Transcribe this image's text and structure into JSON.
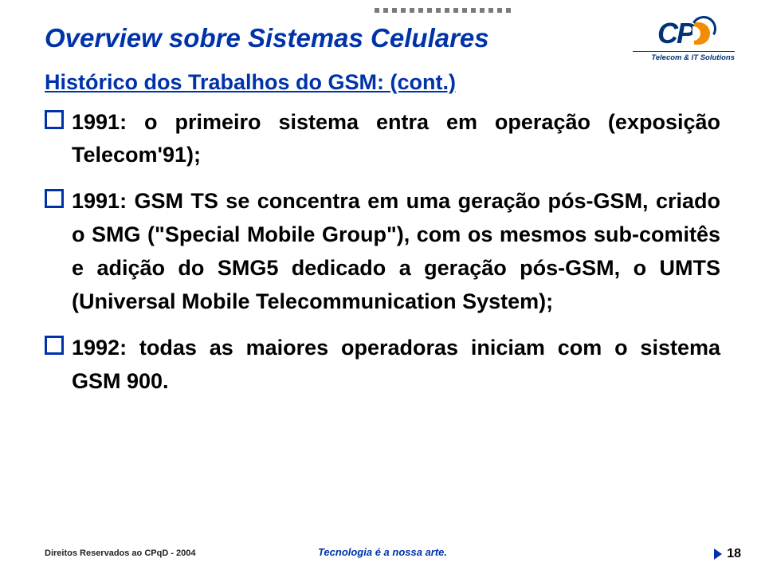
{
  "colors": {
    "title": "#0033aa",
    "subtitle": "#0033aa",
    "body_text": "#000000",
    "bullet_border": "#0033aa",
    "dots": "#7a7a7a",
    "logo_primary": "#003377",
    "logo_accent": "#f28c00",
    "footer_center": "#0033aa",
    "background": "#ffffff"
  },
  "typography": {
    "title_fontsize": 33,
    "subtitle_fontsize": 27,
    "body_fontsize": 27,
    "footer_fontsize": 11,
    "pagenum_fontsize": 16,
    "font_family": "Arial"
  },
  "dots_count": 16,
  "title": "Overview sobre Sistemas Celulares",
  "subtitle": "Histórico dos Trabalhos do GSM: (cont.)",
  "logo": {
    "letters": "CP",
    "tagline": "Telecom & IT Solutions"
  },
  "bullets": [
    "1991: o primeiro sistema entra em operação (exposição Telecom'91);",
    "1991: GSM TS se concentra em uma geração pós-GSM, criado o SMG (\"Special Mobile Group\"), com os mesmos sub-comitês e adição do SMG5 dedicado a geração pós-GSM, o UMTS (Universal Mobile Telecommunication System);",
    "1992: todas as maiores operadoras iniciam com o sistema GSM 900."
  ],
  "footer": {
    "left": "Direitos Reservados ao CPqD - 2004",
    "center": "Tecnologia é a nossa arte.",
    "page": "18"
  }
}
